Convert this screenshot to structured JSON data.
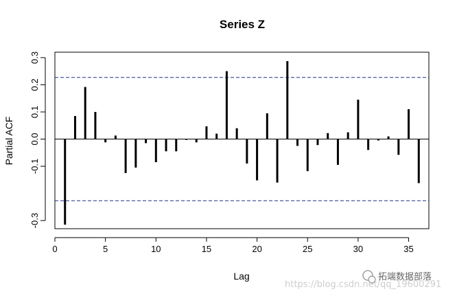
{
  "chart_data": {
    "type": "bar",
    "title": "Series  Z",
    "xlabel": "Lag",
    "ylabel": "Partial ACF",
    "xlim": [
      0,
      37
    ],
    "ylim": [
      -0.33,
      0.32
    ],
    "x_ticks": [
      0,
      5,
      10,
      15,
      20,
      25,
      30,
      35
    ],
    "y_ticks": [
      -0.3,
      -0.1,
      0.0,
      0.1,
      0.2,
      0.3
    ],
    "y_tick_labels": [
      "-0.3",
      "-0.1",
      "0.0",
      "0.1",
      "0.2",
      "0.3"
    ],
    "confidence_bound": 0.227,
    "grid": false,
    "series": [
      {
        "x": [
          1,
          2,
          3,
          4,
          5,
          6,
          7,
          8,
          9,
          10,
          11,
          12,
          13,
          14,
          15,
          16,
          17,
          18,
          19,
          20,
          21,
          22,
          23,
          24,
          25,
          26,
          27,
          28,
          29,
          30,
          31,
          32,
          33,
          34,
          35,
          36
        ],
        "values": [
          -0.315,
          0.085,
          0.192,
          0.1,
          -0.012,
          0.013,
          -0.125,
          -0.105,
          -0.015,
          -0.085,
          -0.045,
          -0.045,
          -0.003,
          -0.012,
          0.047,
          0.02,
          0.25,
          0.04,
          -0.09,
          -0.152,
          0.095,
          -0.16,
          0.287,
          -0.025,
          -0.118,
          -0.022,
          0.022,
          -0.095,
          0.025,
          0.145,
          -0.04,
          -0.005,
          0.01,
          -0.058,
          0.11,
          -0.162
        ]
      }
    ]
  },
  "watermark": {
    "url": "https://blog.csdn.net/qq_19600291",
    "brand": "拓端数据部落"
  }
}
